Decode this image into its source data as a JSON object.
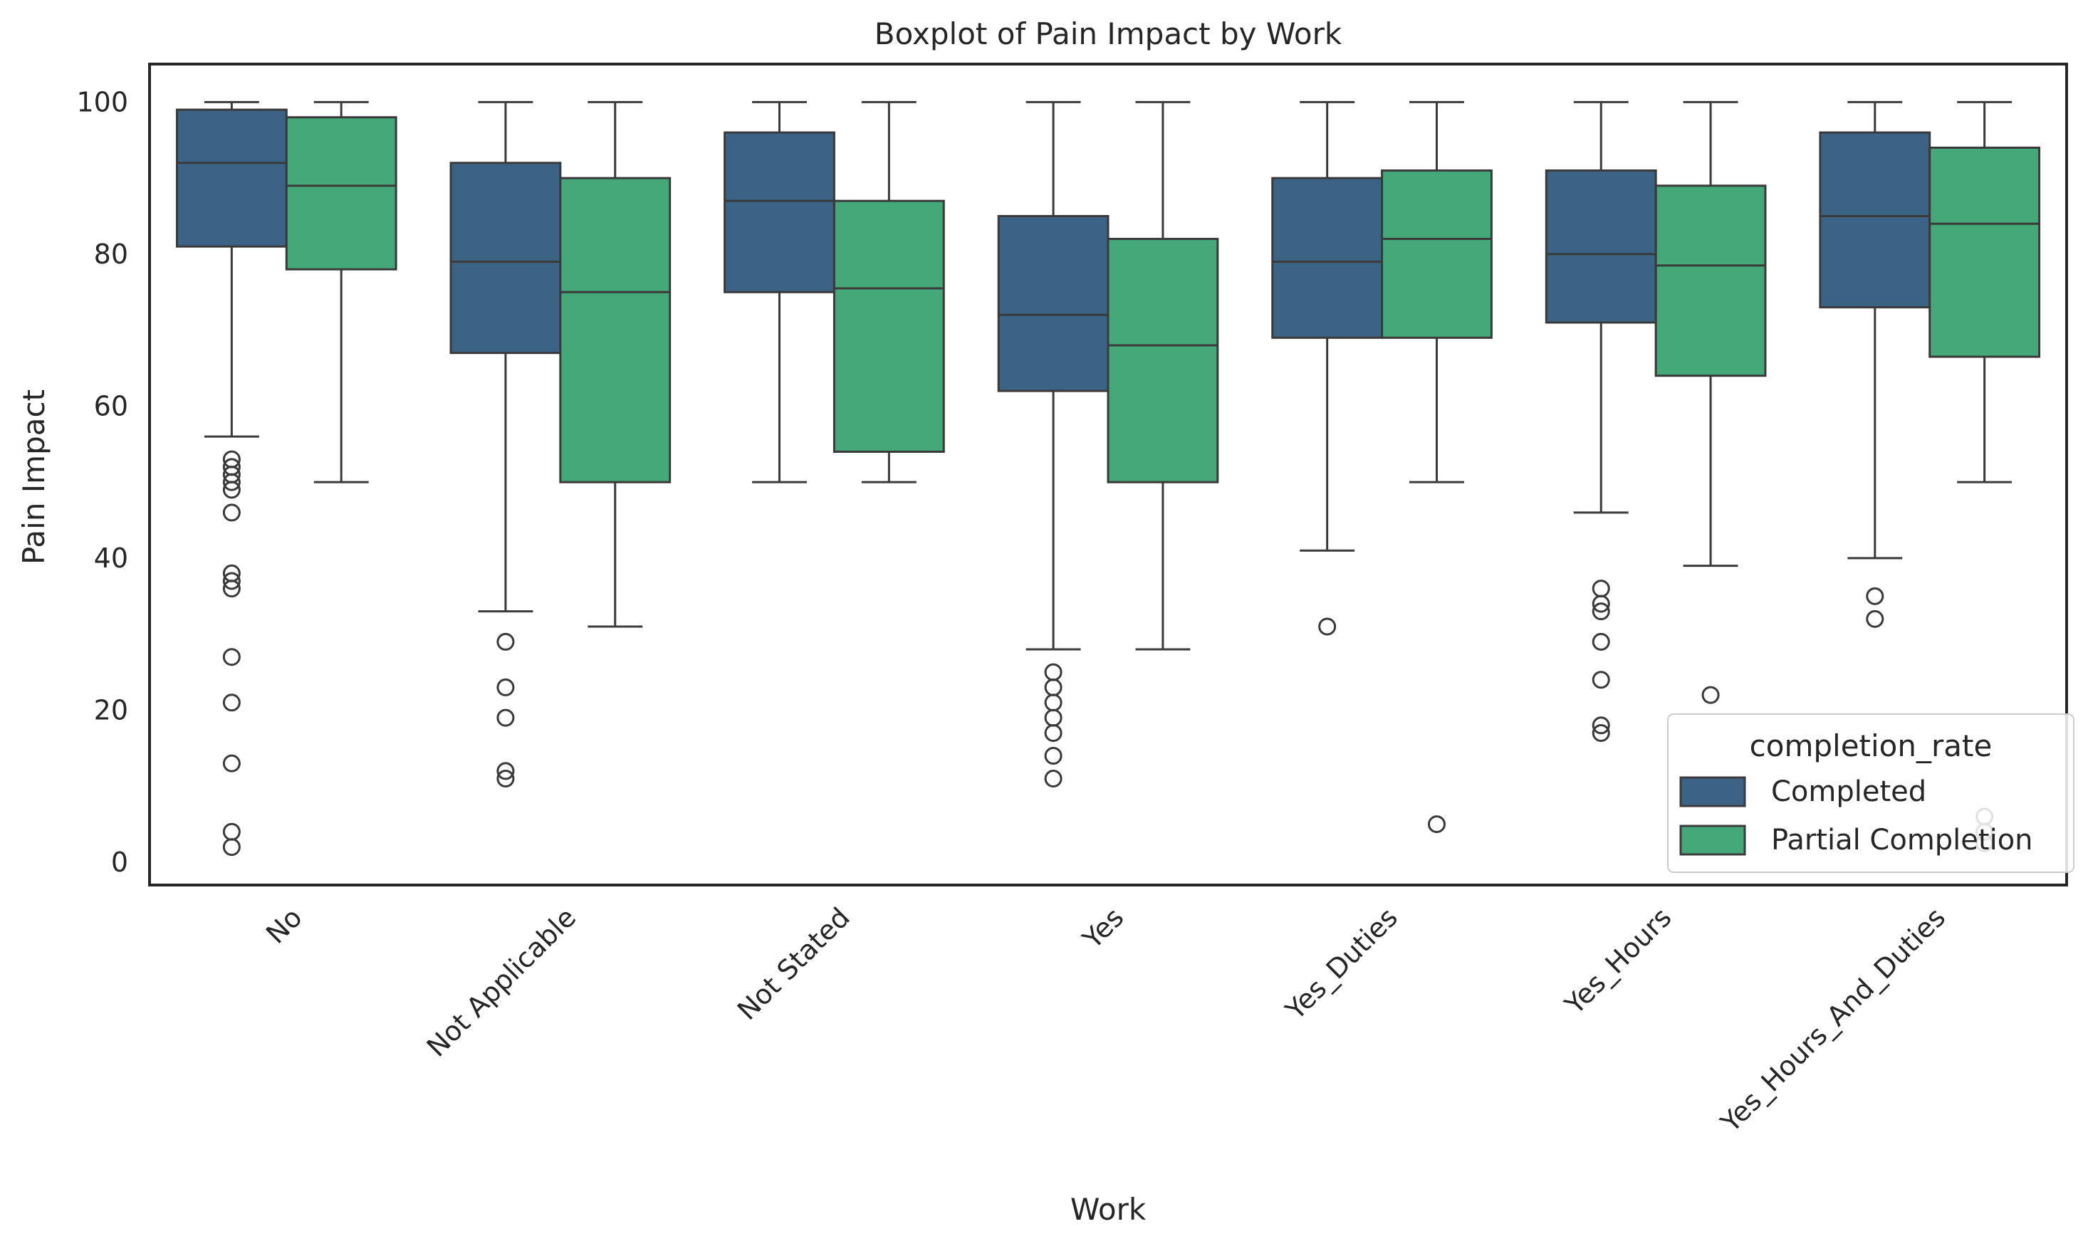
{
  "chart_data": {
    "type": "boxplot",
    "title": "Boxplot of Pain Impact by Work",
    "xlabel": "Work",
    "ylabel": "Pain Impact",
    "ylim": [
      -3,
      105
    ],
    "yticks": [
      0,
      20,
      40,
      60,
      80,
      100
    ],
    "grid": false,
    "legend": {
      "title": "completion_rate",
      "placement": "lower-right"
    },
    "categories": [
      "No",
      "Not Applicable",
      "Not Stated",
      "Yes",
      "Yes_Duties",
      "Yes_Hours",
      "Yes_Hours_And_Duties"
    ],
    "series": [
      {
        "name": "Completed",
        "color": "#3b6385",
        "boxes": [
          {
            "whislo": 56,
            "q1": 81,
            "med": 92,
            "q3": 99,
            "whishi": 100,
            "fliers": [
              53,
              52,
              51,
              50,
              49,
              46,
              38,
              37,
              36,
              27,
              21,
              13,
              4,
              2
            ]
          },
          {
            "whislo": 33,
            "q1": 67,
            "med": 79,
            "q3": 92,
            "whishi": 100,
            "fliers": [
              29,
              23,
              19,
              12,
              11
            ]
          },
          {
            "whislo": 50,
            "q1": 75,
            "med": 87,
            "q3": 96,
            "whishi": 100,
            "fliers": []
          },
          {
            "whislo": 28,
            "q1": 62,
            "med": 72,
            "q3": 85,
            "whishi": 100,
            "fliers": [
              25,
              23,
              21,
              19,
              17,
              14,
              11
            ]
          },
          {
            "whislo": 41,
            "q1": 69,
            "med": 79,
            "q3": 90,
            "whishi": 100,
            "fliers": [
              31
            ]
          },
          {
            "whislo": 46,
            "q1": 71,
            "med": 80,
            "q3": 91,
            "whishi": 100,
            "fliers": [
              36,
              34,
              33,
              29,
              24,
              18,
              17
            ]
          },
          {
            "whislo": 40,
            "q1": 73,
            "med": 85,
            "q3": 96,
            "whishi": 100,
            "fliers": [
              35,
              32
            ]
          }
        ]
      },
      {
        "name": "Partial Completion",
        "color": "#44a878",
        "boxes": [
          {
            "whislo": 50,
            "q1": 78,
            "med": 89,
            "q3": 98,
            "whishi": 100,
            "fliers": []
          },
          {
            "whislo": 31,
            "q1": 50,
            "med": 75,
            "q3": 90,
            "whishi": 100,
            "fliers": []
          },
          {
            "whislo": 50,
            "q1": 54,
            "med": 75.5,
            "q3": 87,
            "whishi": 100,
            "fliers": []
          },
          {
            "whislo": 28,
            "q1": 50,
            "med": 68,
            "q3": 82,
            "whishi": 100,
            "fliers": []
          },
          {
            "whislo": 50,
            "q1": 69,
            "med": 82,
            "q3": 91,
            "whishi": 100,
            "fliers": [
              5
            ]
          },
          {
            "whislo": 39,
            "q1": 64,
            "med": 78.5,
            "q3": 89,
            "whishi": 100,
            "fliers": [
              22
            ]
          },
          {
            "whislo": 50,
            "q1": 66.5,
            "med": 84,
            "q3": 94,
            "whishi": 100,
            "fliers": [
              6,
              4,
              2.5
            ]
          }
        ]
      }
    ]
  }
}
